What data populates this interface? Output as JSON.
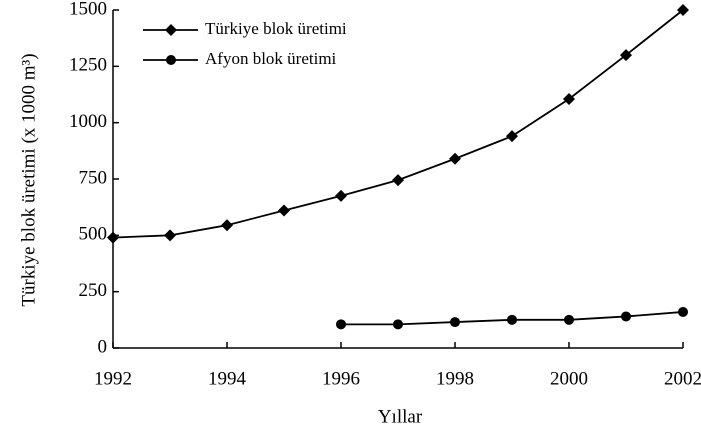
{
  "chart_data": {
    "type": "line",
    "xlabel": "Yıllar",
    "ylabel": "Türkiye blok üretimi (x 1000 m³)",
    "x": [
      1992,
      1993,
      1994,
      1995,
      1996,
      1997,
      1998,
      1999,
      2000,
      2001,
      2002
    ],
    "series": [
      {
        "name": "Türkiye blok üretimi",
        "color": "#000000",
        "marker": "diamond",
        "values": [
          490,
          500,
          545,
          610,
          675,
          745,
          840,
          940,
          1105,
          1300,
          1500
        ]
      },
      {
        "name": "Afyon blok üretimi",
        "color": "#000000",
        "marker": "circle",
        "values": [
          null,
          null,
          null,
          null,
          105,
          105,
          115,
          125,
          125,
          140,
          160
        ]
      }
    ],
    "xlim": [
      1992,
      2002
    ],
    "xticks": [
      1992,
      1994,
      1996,
      1998,
      2000,
      2002
    ],
    "ylim": [
      0,
      1500
    ],
    "yticks": [
      0,
      250,
      500,
      750,
      1000,
      1250,
      1500
    ],
    "legend": "upper left"
  }
}
